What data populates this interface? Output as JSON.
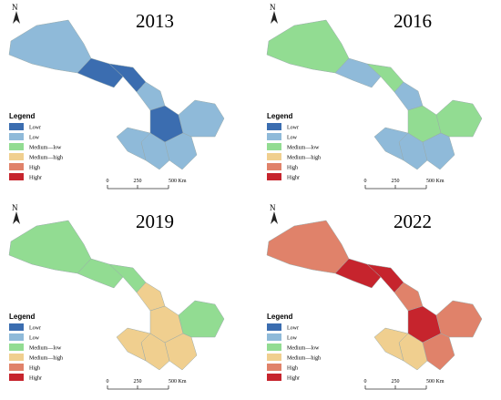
{
  "north_label": "N",
  "panels": [
    {
      "title": "2013"
    },
    {
      "title": "2016"
    },
    {
      "title": "2019"
    },
    {
      "title": "2022"
    }
  ],
  "legend": {
    "title": "Legend",
    "items": [
      {
        "label": "Lowr",
        "color": "#3b6db0"
      },
      {
        "label": "Low",
        "color": "#8fbad9"
      },
      {
        "label": "Medium—low",
        "color": "#92dc92"
      },
      {
        "label": "Medium—high",
        "color": "#f0cf8f"
      },
      {
        "label": "High",
        "color": "#e0826a"
      },
      {
        "label": "Highr",
        "color": "#c6242d"
      }
    ]
  },
  "scale_labels": [
    "0",
    "250",
    "500 Km"
  ]
}
